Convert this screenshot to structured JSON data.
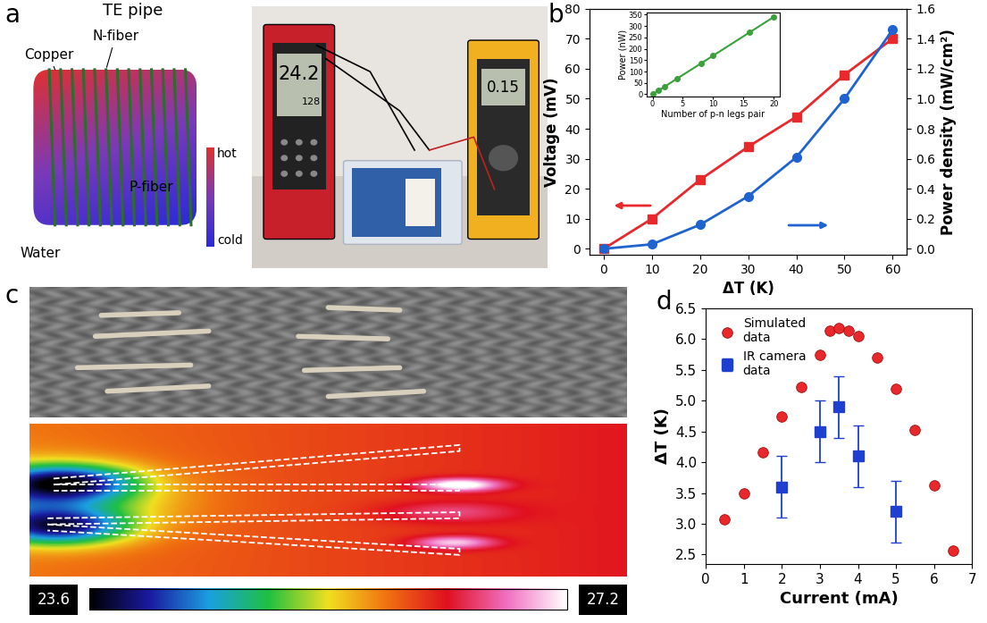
{
  "panel_labels": [
    "a",
    "b",
    "c",
    "d"
  ],
  "diagram": {
    "title": "TE pipe",
    "n_fiber": "N-fiber",
    "copper": "Copper",
    "p_fiber": "P-fiber",
    "water": "Water",
    "scale_top": "hot",
    "scale_bottom": "cold"
  },
  "photo_a": {
    "thermometer_main": "24.2",
    "thermometer_sub": "128",
    "multimeter": "0.15"
  },
  "ir_scale": {
    "min": 23.6,
    "max": 27.2
  },
  "chart_data": [
    {
      "type": "line",
      "x_label": "ΔT (K)",
      "y_label": "Voltage (mV)",
      "y2_label": "Power density (mW/cm²)",
      "x": [
        0,
        10,
        20,
        30,
        40,
        50,
        60
      ],
      "xlim": [
        -3,
        63
      ],
      "xticks": [
        0,
        10,
        20,
        30,
        40,
        50,
        60
      ],
      "ylim": [
        -2,
        80
      ],
      "yticks": [
        0,
        10,
        20,
        30,
        40,
        50,
        60,
        70,
        80
      ],
      "y2lim": [
        -0.04,
        1.6
      ],
      "y2ticks": [
        {
          "value": 0,
          "label": "0.0"
        },
        {
          "value": 0.2,
          "label": "0.2"
        },
        {
          "value": 0.4,
          "label": "0.4"
        },
        {
          "value": 0.6,
          "label": "0.6"
        },
        {
          "value": 0.8,
          "label": "0.8"
        },
        {
          "value": 1,
          "label": "1.0"
        },
        {
          "value": 1.2,
          "label": "1.2"
        },
        {
          "value": 1.4,
          "label": "1.4"
        },
        {
          "value": 1.6,
          "label": "1.6"
        }
      ],
      "series": [
        {
          "color": "#e8282b",
          "marker": "square",
          "line_style": "solid",
          "values": [
            0,
            10,
            23,
            34,
            44,
            58,
            70
          ]
        },
        {
          "color": "#1f63d1",
          "marker": "circle",
          "line_style": "solid",
          "axis": "y2",
          "values": [
            0,
            0.03,
            0.16,
            0.35,
            0.61,
            1.0,
            1.46
          ]
        }
      ]
    },
    {
      "type": "line",
      "x_label": "Number of p-n legs pair",
      "y_label": "Power (nW)",
      "x": [
        0,
        1,
        2,
        4,
        8,
        10,
        16,
        20
      ],
      "xlim": [
        -1,
        21
      ],
      "xticks": [
        0,
        5,
        10,
        15,
        20
      ],
      "ylim": [
        -10,
        360
      ],
      "yticks": [
        0,
        50,
        100,
        150,
        200,
        250,
        300,
        350
      ],
      "series": [
        {
          "color": "#3aa03a",
          "marker": "circle",
          "line_style": "solid",
          "values": [
            0,
            17,
            34,
            68,
            136,
            170,
            272,
            340
          ]
        }
      ]
    },
    {
      "type": "scatter",
      "x_label": "Current (mA)",
      "y_label": "ΔT (K)",
      "xlim": [
        0,
        7
      ],
      "xticks": [
        0,
        1,
        2,
        3,
        4,
        5,
        6,
        7
      ],
      "ylim": [
        2.35,
        6.5
      ],
      "yticks": [
        2.5,
        3.0,
        3.5,
        4.0,
        4.5,
        5.0,
        5.5,
        6.0,
        6.5
      ],
      "legend": "upper left",
      "series": [
        {
          "name": "Simulated\ndata",
          "color": "#e8282b",
          "marker": "circle",
          "x": [
            0.5,
            1,
            1.5,
            2,
            2.5,
            3,
            3.25,
            3.5,
            3.75,
            4,
            4.5,
            5,
            5.5,
            6,
            6.5
          ],
          "values": [
            3.07,
            3.49,
            4.16,
            4.74,
            5.22,
            5.75,
            6.14,
            6.18,
            6.13,
            6.05,
            5.7,
            5.19,
            4.52,
            3.63,
            2.57
          ]
        },
        {
          "name": "IR camera\ndata",
          "color": "#1f3fd1",
          "marker": "square",
          "x": [
            2,
            3,
            3.5,
            4,
            5
          ],
          "values": [
            3.6,
            4.5,
            4.9,
            4.1,
            3.2
          ],
          "error": [
            0.5,
            0.5,
            0.5,
            0.5,
            0.5
          ]
        }
      ]
    }
  ]
}
